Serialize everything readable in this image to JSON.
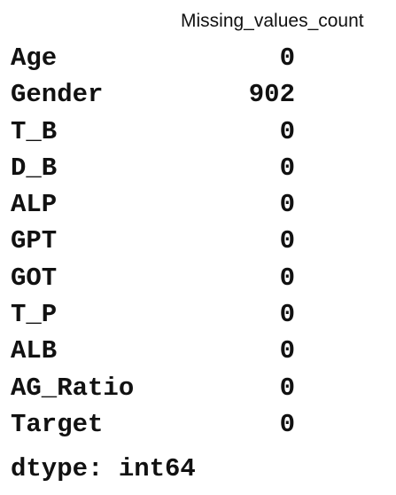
{
  "table": {
    "column_header": "Missing_values_count",
    "rows": [
      {
        "label": "Age",
        "value": "0"
      },
      {
        "label": "Gender",
        "value": "902"
      },
      {
        "label": "T_B",
        "value": "0"
      },
      {
        "label": "D_B",
        "value": "0"
      },
      {
        "label": "ALP",
        "value": "0"
      },
      {
        "label": "GPT",
        "value": "0"
      },
      {
        "label": "GOT",
        "value": "0"
      },
      {
        "label": "T_P",
        "value": "0"
      },
      {
        "label": "ALB",
        "value": "0"
      },
      {
        "label": "AG_Ratio",
        "value": "0"
      },
      {
        "label": "Target",
        "value": "0"
      }
    ],
    "dtype_line": "dtype: int64"
  }
}
